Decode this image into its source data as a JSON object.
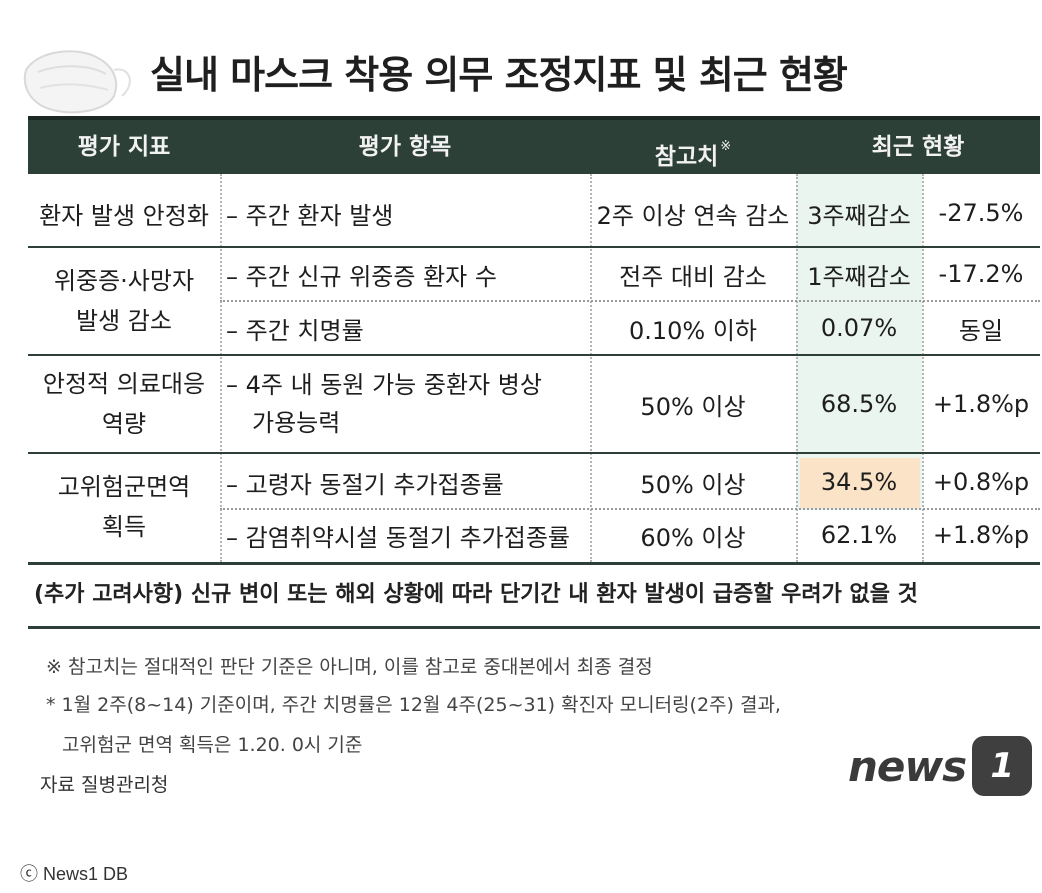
{
  "title": "실내 마스크 착용 의무 조정지표 및 최근 현황",
  "headers": {
    "indicator": "평가 지표",
    "item": "평가 항목",
    "reference": "참고치",
    "reference_mark": "※",
    "status": "최근 현황"
  },
  "rows": [
    {
      "indicator": "환자 발생 안정화",
      "item": "– 주간 환자 발생",
      "reference": "2주 이상 연속 감소",
      "status": "3주째감소",
      "change": "-27.5%"
    },
    {
      "indicator_line1": "위중증·사망자",
      "indicator_line2": "발생 감소",
      "item": "– 주간 신규 위중증 환자 수",
      "reference": "전주 대비 감소",
      "status": "1주째감소",
      "change": "-17.2%"
    },
    {
      "item": "– 주간 치명률",
      "reference": "0.10% 이하",
      "status": "0.07%",
      "change": "동일"
    },
    {
      "indicator_line1": "안정적 의료대응",
      "indicator_line2": "역량",
      "item_line1": "– 4주 내 동원 가능 중환자 병상",
      "item_line2": "가용능력",
      "reference": "50% 이상",
      "status": "68.5%",
      "change": "+1.8%p"
    },
    {
      "indicator_line1": "고위험군면역",
      "indicator_line2": "획득",
      "item": "– 고령자 동절기 추가접종률",
      "reference": "50% 이상",
      "status": "34.5%",
      "change": "+0.8%p"
    },
    {
      "item": "– 감염취약시설 동절기 추가접종률",
      "reference": "60% 이상",
      "status": "62.1%",
      "change": "+1.8%p"
    }
  ],
  "additional_note": "(추가 고려사항) 신규 변이 또는 해외 상황에 따라 단기간 내 환자 발생이 급증할 우려가 없을 것",
  "footnotes": {
    "ref_note": "※ 참고치는 절대적인 판단 기준은 아니며, 이를 참고로 중대본에서 최종 결정",
    "star_note_line1": "* 1월 2주(8~14) 기준이며, 주간 치명률은 12월 4주(25~31) 확진자 모니터링(2주) 결과,",
    "star_note_line2": "고위험군 면역 획득은 1.20. 0시 기준",
    "source": "자료  질병관리청"
  },
  "logo": {
    "text": "news",
    "badge": "1"
  },
  "copyright": "ⓒ News1 DB",
  "colors": {
    "header_bg": "#2d4038",
    "highlight_green": "#e9f5ee",
    "highlight_orange": "#fbe3c8"
  }
}
